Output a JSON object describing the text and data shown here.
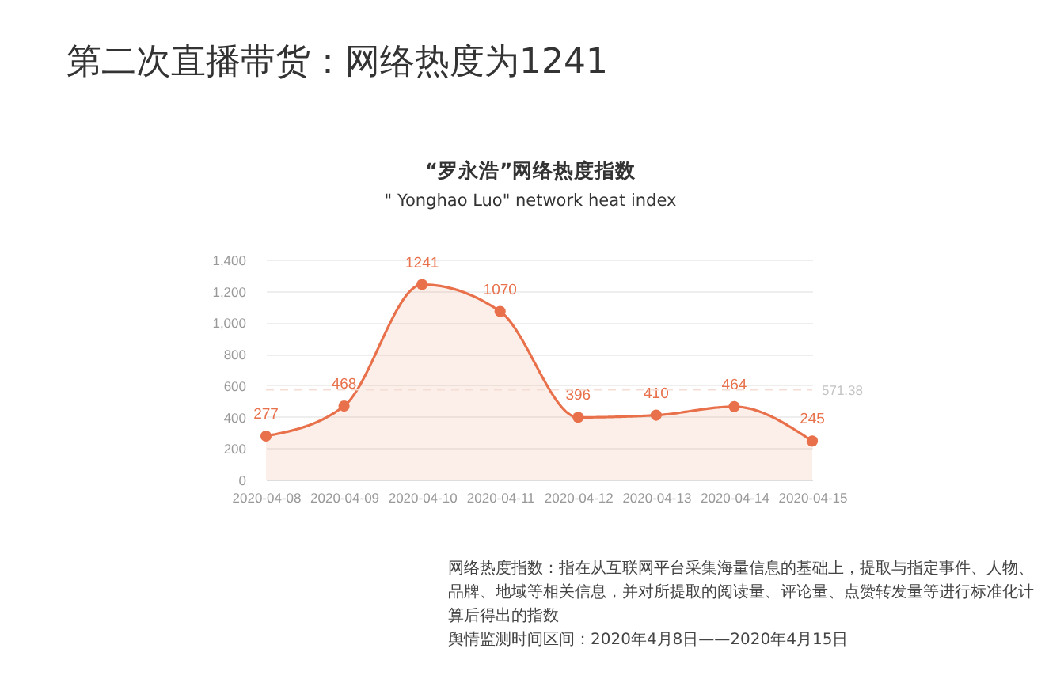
{
  "chart_data": {
    "type": "area",
    "title": "第二次直播带货：网络热度为1241",
    "subtitle": "“罗永浩”网络热度指数",
    "annotations": [
      "\" Yonghao Luo\" network heat index",
      "网络热度指数：指在从互联网平台采集海量信息的基础上，提取与指定事件、人物、品牌、地域等相关信息，并对所提取的阅读量、评论量、点赞转发量等进行标准化计算后得出的指数",
      "舆情监测时间区间：2020年4月8日——2020年4月15日"
    ],
    "categories": [
      "2020-04-08",
      "2020-04-09",
      "2020-04-10",
      "2020-04-11",
      "2020-04-12",
      "2020-04-13",
      "2020-04-14",
      "2020-04-15"
    ],
    "series": [
      {
        "color": "#e8704a",
        "values": [
          277,
          468,
          1241,
          1070,
          396,
          410,
          464,
          245
        ]
      }
    ],
    "ylim": [
      0,
      1400
    ],
    "yticks": [
      0,
      200,
      400,
      600,
      800,
      {
        "value": 1000,
        "label": "1,000"
      },
      {
        "value": 1200,
        "label": "1,200"
      },
      {
        "value": 1400,
        "label": "1,400"
      }
    ],
    "grid": "y",
    "marker": "circle",
    "data_labels": true,
    "ref_lines": [
      {
        "axis": "y",
        "value": 571.38,
        "label": "571.38",
        "color": "#f3ddd4",
        "line_style": "dashed"
      }
    ]
  }
}
